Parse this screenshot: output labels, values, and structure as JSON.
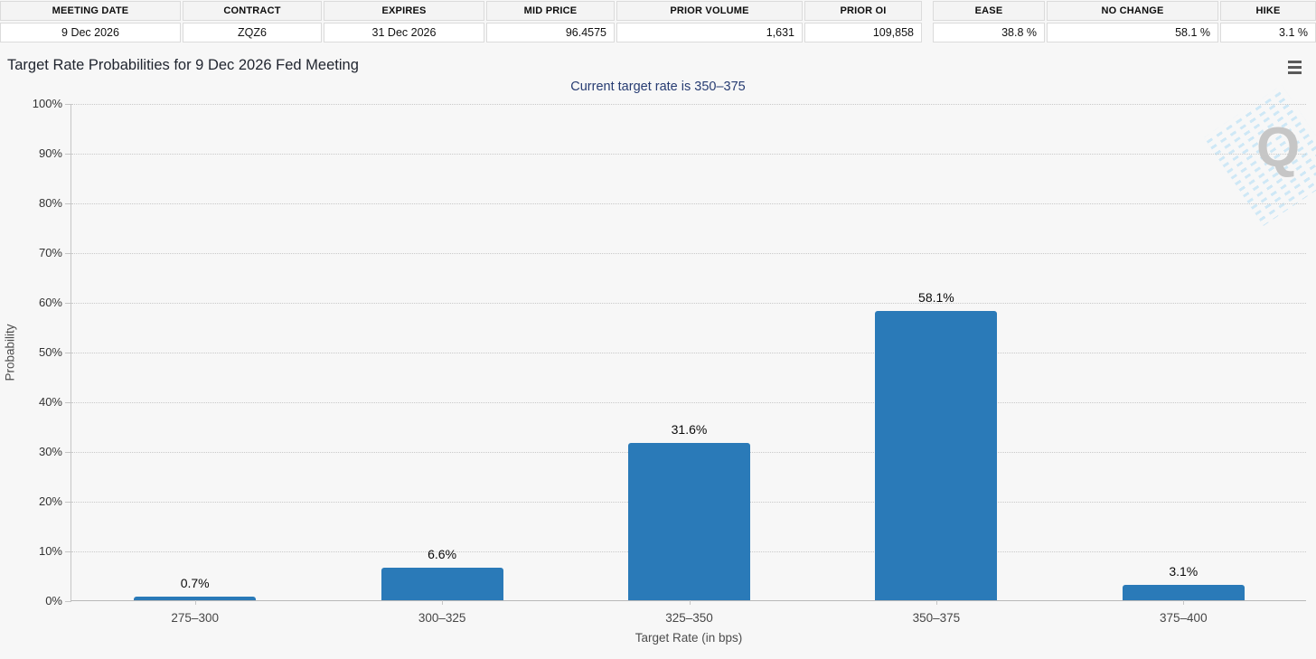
{
  "colors": {
    "bar": "#2a7ab8",
    "subtitle_text": "#273c72",
    "page_background": "#f7f7f7"
  },
  "info_table": {
    "headers": [
      "MEETING DATE",
      "CONTRACT",
      "EXPIRES",
      "MID PRICE",
      "PRIOR VOLUME",
      "PRIOR OI"
    ],
    "values": [
      "9 Dec 2026",
      "ZQZ6",
      "31 Dec 2026",
      "96.4575",
      "1,631",
      "109,858"
    ]
  },
  "probability_summary": {
    "headers": [
      "EASE",
      "NO CHANGE",
      "HIKE"
    ],
    "values": [
      "38.8 %",
      "58.1 %",
      "3.1 %"
    ]
  },
  "chart": {
    "title": "Target Rate Probabilities for 9 Dec 2026 Fed Meeting",
    "subtitle": "Current target rate is 350–375",
    "watermark_letter": "Q",
    "menu_icon": "hamburger-menu-icon"
  },
  "chart_data": {
    "type": "bar",
    "title": "Target Rate Probabilities for 9 Dec 2026 Fed Meeting",
    "subtitle": "Current target rate is 350–375",
    "categories": [
      "275–300",
      "300–325",
      "325–350",
      "350–375",
      "375–400"
    ],
    "values": [
      0.7,
      6.6,
      31.6,
      58.1,
      3.1
    ],
    "value_labels": [
      "0.7%",
      "6.6%",
      "31.6%",
      "58.1%",
      "3.1%"
    ],
    "xlabel": "Target Rate (in bps)",
    "ylabel": "Probability",
    "ylim": [
      0,
      100
    ],
    "yticks": [
      "0%",
      "10%",
      "20%",
      "30%",
      "40%",
      "50%",
      "60%",
      "70%",
      "80%",
      "90%",
      "100%"
    ],
    "grid": "horizontal-dotted",
    "legend": "none",
    "bar_color": "#2a7ab8"
  }
}
